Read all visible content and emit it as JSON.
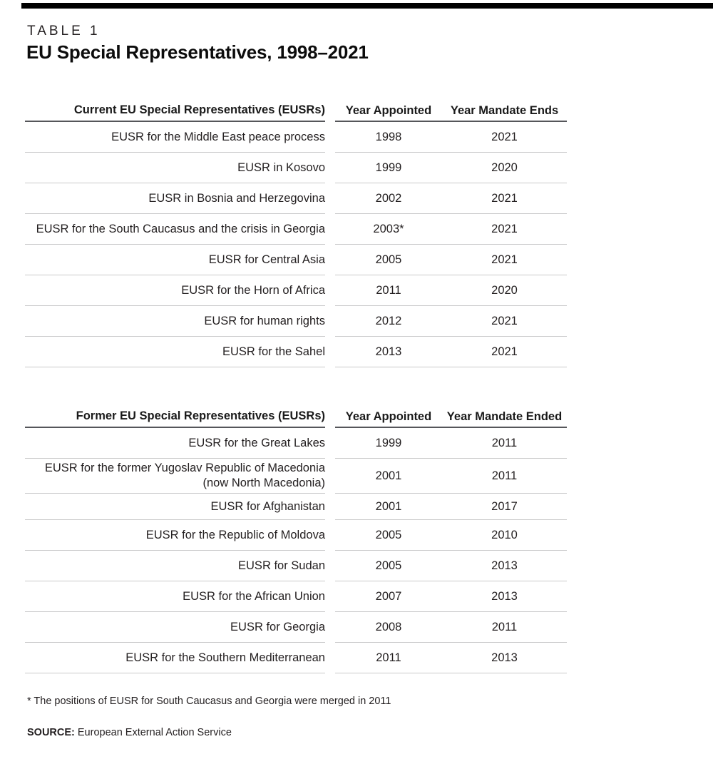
{
  "page": {
    "table_label": "TABLE 1",
    "title": "EU Special Representatives, 1998–2021",
    "footnote": "* The positions of EUSR for South Caucasus and Georgia were merged in 2011",
    "source_label": "SOURCE:",
    "source_text": "European External Action Service"
  },
  "colors": {
    "text": "#231f20",
    "top_bar": "#000000",
    "header_rule": "#55565a",
    "row_rule": "#c9c9ca"
  },
  "tables": [
    {
      "name": "current-eusr-table",
      "headers": [
        "Current EU Special Representatives (EUSRs)",
        "Year Appointed",
        "Year Mandate Ends"
      ],
      "rows": [
        [
          "EUSR for the Middle East peace process",
          "1998",
          "2021"
        ],
        [
          "EUSR in Kosovo",
          "1999",
          "2020"
        ],
        [
          "EUSR in Bosnia and Herzegovina",
          "2002",
          "2021"
        ],
        [
          "EUSR for the South Caucasus and the crisis in Georgia",
          "2003*",
          "2021"
        ],
        [
          "EUSR for Central Asia",
          "2005",
          "2021"
        ],
        [
          "EUSR for the Horn of Africa",
          "2011",
          "2020"
        ],
        [
          "EUSR for human rights",
          "2012",
          "2021"
        ],
        [
          "EUSR for the Sahel",
          "2013",
          "2021"
        ]
      ]
    },
    {
      "name": "former-eusr-table",
      "headers": [
        "Former EU Special Representatives (EUSRs)",
        "Year Appointed",
        "Year Mandate Ended"
      ],
      "rows": [
        [
          "EUSR for the Great Lakes",
          "1999",
          "2011"
        ],
        [
          "EUSR for the former Yugoslav Republic of Macedonia (now North Macedonia)",
          "2001",
          "2011"
        ],
        [
          "EUSR for Afghanistan",
          "2001",
          "2017"
        ],
        [
          "EUSR for the Republic of Moldova",
          "2005",
          "2010"
        ],
        [
          "EUSR for Sudan",
          "2005",
          "2013"
        ],
        [
          "EUSR for the African Union",
          "2007",
          "2013"
        ],
        [
          "EUSR for Georgia",
          "2008",
          "2011"
        ],
        [
          "EUSR for the Southern Mediterranean",
          "2011",
          "2013"
        ]
      ]
    }
  ]
}
